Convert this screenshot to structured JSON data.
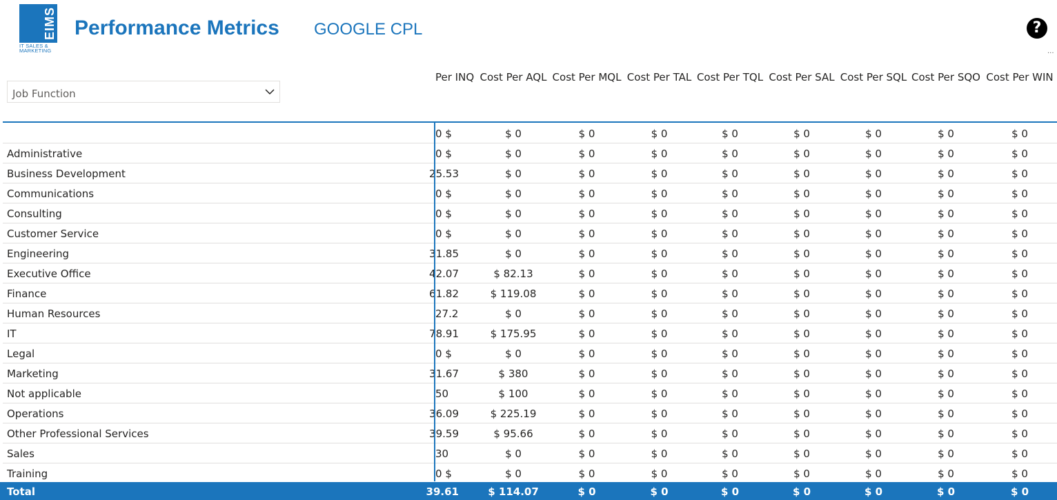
{
  "header": {
    "logo_text": "EIMS",
    "logo_sub": "IT SALES & MARKETING",
    "title": "Performance Metrics",
    "subtitle": "GOOGLE CPL",
    "help_icon": "?",
    "more_icon": "..."
  },
  "slicer": {
    "label": "Job Function",
    "icon": "chevron-down-icon"
  },
  "table": {
    "columns": [
      "Per INQ",
      "Cost Per AQL",
      "Cost Per MQL",
      "Cost Per TAL",
      "Cost Per TQL",
      "Cost Per SAL",
      "Cost Per SQL",
      "Cost Per SQO",
      "Cost Per WIN"
    ],
    "rows": [
      {
        "label": "",
        "values": [
          "$ 0",
          "$ 0",
          "$ 0",
          "$ 0",
          "$ 0",
          "$ 0",
          "$ 0",
          "$ 0",
          "$ 0"
        ]
      },
      {
        "label": "Administrative",
        "values": [
          "$ 0",
          "$ 0",
          "$ 0",
          "$ 0",
          "$ 0",
          "$ 0",
          "$ 0",
          "$ 0",
          "$ 0"
        ]
      },
      {
        "label": "Business Development",
        "values": [
          "25.53",
          "$ 0",
          "$ 0",
          "$ 0",
          "$ 0",
          "$ 0",
          "$ 0",
          "$ 0",
          "$ 0"
        ]
      },
      {
        "label": "Communications",
        "values": [
          "$ 0",
          "$ 0",
          "$ 0",
          "$ 0",
          "$ 0",
          "$ 0",
          "$ 0",
          "$ 0",
          "$ 0"
        ]
      },
      {
        "label": "Consulting",
        "values": [
          "$ 0",
          "$ 0",
          "$ 0",
          "$ 0",
          "$ 0",
          "$ 0",
          "$ 0",
          "$ 0",
          "$ 0"
        ]
      },
      {
        "label": "Customer Service",
        "values": [
          "$ 0",
          "$ 0",
          "$ 0",
          "$ 0",
          "$ 0",
          "$ 0",
          "$ 0",
          "$ 0",
          "$ 0"
        ]
      },
      {
        "label": "Engineering",
        "values": [
          "31.85",
          "$ 0",
          "$ 0",
          "$ 0",
          "$ 0",
          "$ 0",
          "$ 0",
          "$ 0",
          "$ 0"
        ]
      },
      {
        "label": "Executive Office",
        "values": [
          "42.07",
          "$ 82.13",
          "$ 0",
          "$ 0",
          "$ 0",
          "$ 0",
          "$ 0",
          "$ 0",
          "$ 0"
        ]
      },
      {
        "label": "Finance",
        "values": [
          "61.82",
          "$ 119.08",
          "$ 0",
          "$ 0",
          "$ 0",
          "$ 0",
          "$ 0",
          "$ 0",
          "$ 0"
        ]
      },
      {
        "label": "Human Resources",
        "values": [
          "27.2",
          "$ 0",
          "$ 0",
          "$ 0",
          "$ 0",
          "$ 0",
          "$ 0",
          "$ 0",
          "$ 0"
        ]
      },
      {
        "label": "IT",
        "values": [
          "78.91",
          "$ 175.95",
          "$ 0",
          "$ 0",
          "$ 0",
          "$ 0",
          "$ 0",
          "$ 0",
          "$ 0"
        ]
      },
      {
        "label": "Legal",
        "values": [
          "$ 0",
          "$ 0",
          "$ 0",
          "$ 0",
          "$ 0",
          "$ 0",
          "$ 0",
          "$ 0",
          "$ 0"
        ]
      },
      {
        "label": "Marketing",
        "values": [
          "31.67",
          "$ 380",
          "$ 0",
          "$ 0",
          "$ 0",
          "$ 0",
          "$ 0",
          "$ 0",
          "$ 0"
        ]
      },
      {
        "label": "Not applicable",
        "values": [
          "50",
          "$ 100",
          "$ 0",
          "$ 0",
          "$ 0",
          "$ 0",
          "$ 0",
          "$ 0",
          "$ 0"
        ]
      },
      {
        "label": "Operations",
        "values": [
          "36.09",
          "$ 225.19",
          "$ 0",
          "$ 0",
          "$ 0",
          "$ 0",
          "$ 0",
          "$ 0",
          "$ 0"
        ]
      },
      {
        "label": "Other Professional Services",
        "values": [
          "39.59",
          "$ 95.66",
          "$ 0",
          "$ 0",
          "$ 0",
          "$ 0",
          "$ 0",
          "$ 0",
          "$ 0"
        ]
      },
      {
        "label": "Sales",
        "values": [
          "30",
          "$ 0",
          "$ 0",
          "$ 0",
          "$ 0",
          "$ 0",
          "$ 0",
          "$ 0",
          "$ 0"
        ]
      },
      {
        "label": "Training",
        "values": [
          "$ 0",
          "$ 0",
          "$ 0",
          "$ 0",
          "$ 0",
          "$ 0",
          "$ 0",
          "$ 0",
          "$ 0"
        ]
      }
    ],
    "total": {
      "label": "Total",
      "values": [
        "39.61",
        "$ 114.07",
        "$ 0",
        "$ 0",
        "$ 0",
        "$ 0",
        "$ 0",
        "$ 0",
        "$ 0"
      ]
    }
  },
  "colors": {
    "accent": "#1b75bc",
    "text": "#252423",
    "grid": "#e1dfdd"
  }
}
